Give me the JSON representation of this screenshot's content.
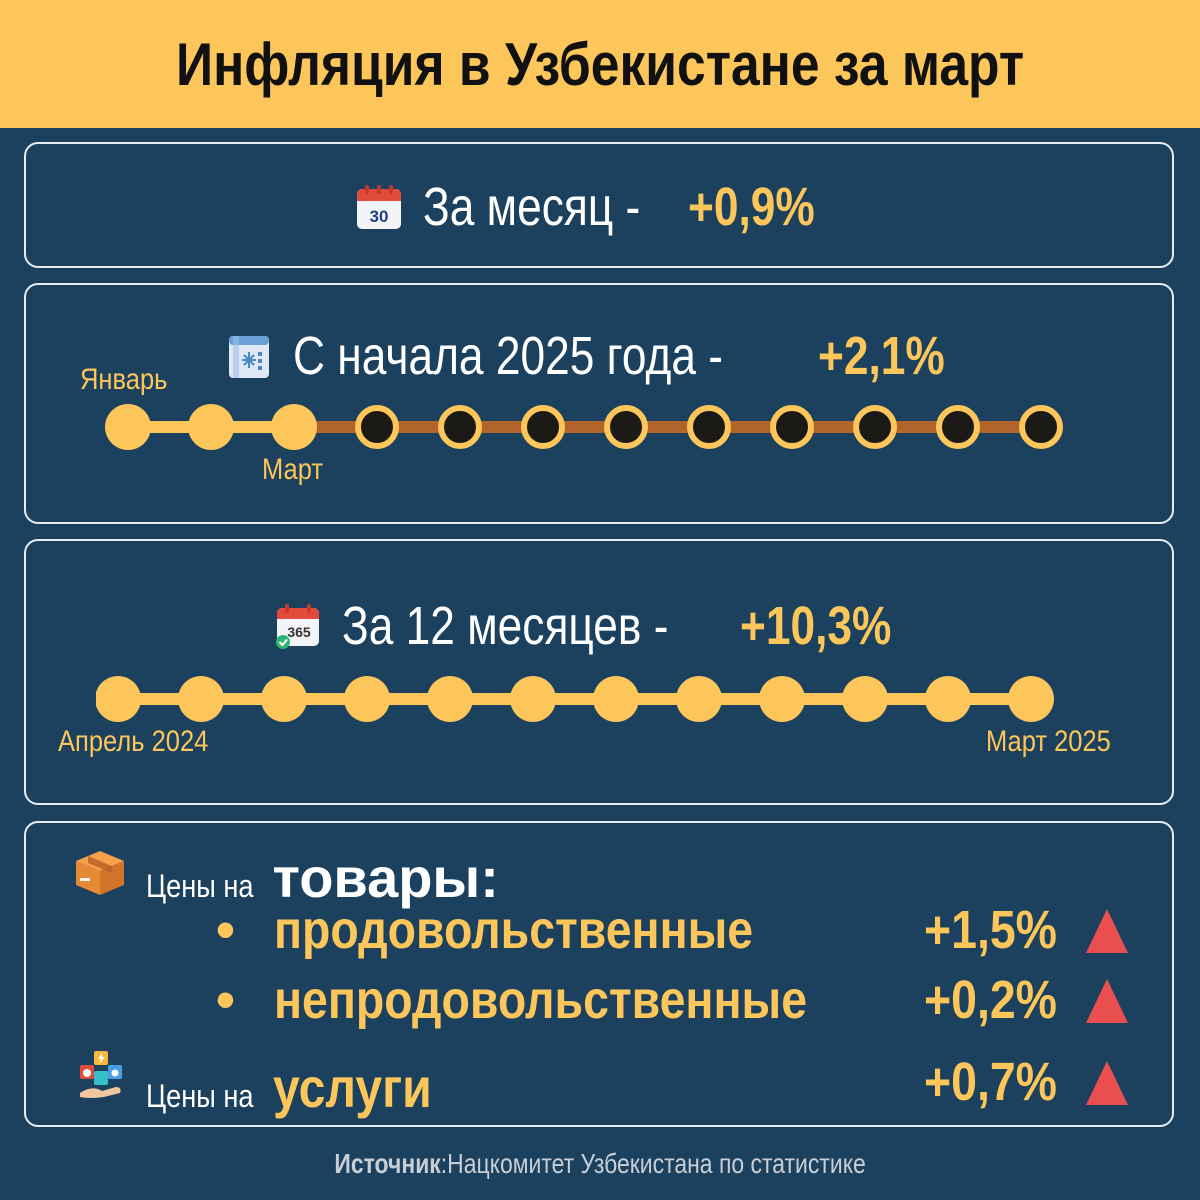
{
  "title": "Инфляция в Узбекистане за март",
  "monthly": {
    "icon": "calendar-30-icon",
    "icon_text": "30",
    "label": "За месяц - ",
    "value": "+0,9%"
  },
  "ytd": {
    "icon": "winter-calendar-icon",
    "label": "С начала 2025 года - ",
    "value": "+2,1%",
    "start_label": "Январь",
    "current_label": "Март",
    "total_months": 12,
    "elapsed_months": 3
  },
  "annual": {
    "icon": "calendar-365-icon",
    "icon_text": "365",
    "label": "За 12 месяцев - ",
    "value": "+10,3%",
    "start_label": "Апрель 2024",
    "end_label": "Март 2025",
    "total_months": 12
  },
  "prices": {
    "goods_icon": "box-icon",
    "prefix": "Цены на ",
    "goods_word": "товары",
    "goods_colon": ":",
    "categories": [
      {
        "bullet": "•",
        "name": "продовольственные",
        "value": "+1,5%",
        "trend": "up"
      },
      {
        "bullet": "•",
        "name": "непродовольственные",
        "value": "+0,2%",
        "trend": "up"
      }
    ],
    "services_icon": "utilities-icon",
    "services_prefix": "Цены на ",
    "services_word": "услуги",
    "services_value": "+0,7%",
    "services_trend": "up"
  },
  "source": {
    "label": "Источник",
    "separator": ": ",
    "text": "Нацкомитет Узбекистана по статистике"
  },
  "colors": {
    "accent": "#fcc65a",
    "background": "#1b415e",
    "trend_up": "#e94f4f",
    "future": "#1c1a17",
    "future_line": "#b1652a"
  }
}
